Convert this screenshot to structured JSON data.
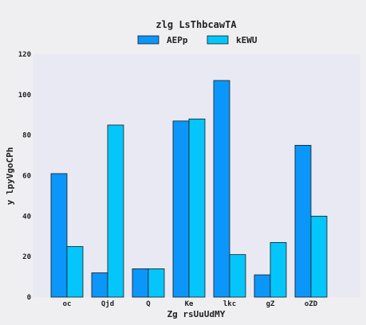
{
  "chart_data": {
    "type": "bar",
    "title": "zlg LsThbcawTA",
    "xlabel": "Zg  rsUuUdMY",
    "ylabel": "y lpyVgoCPh",
    "categories": [
      "oc",
      "Qjd",
      "Q",
      "Ke",
      "lkc",
      "gZ",
      "oZD"
    ],
    "series": [
      {
        "name": "AEPp",
        "color": "#0b96fa",
        "values": [
          61,
          12,
          14,
          87,
          107,
          11,
          75
        ]
      },
      {
        "name": "kEWU",
        "color": "#04c6fb",
        "values": [
          25,
          85,
          14,
          88,
          21,
          27,
          40
        ]
      }
    ],
    "ylim": [
      0,
      120
    ],
    "yticks": [
      0,
      20,
      40,
      60,
      80,
      100,
      120
    ],
    "grid": false,
    "legend": "top-center",
    "plot_background": "#e9e9f3"
  }
}
